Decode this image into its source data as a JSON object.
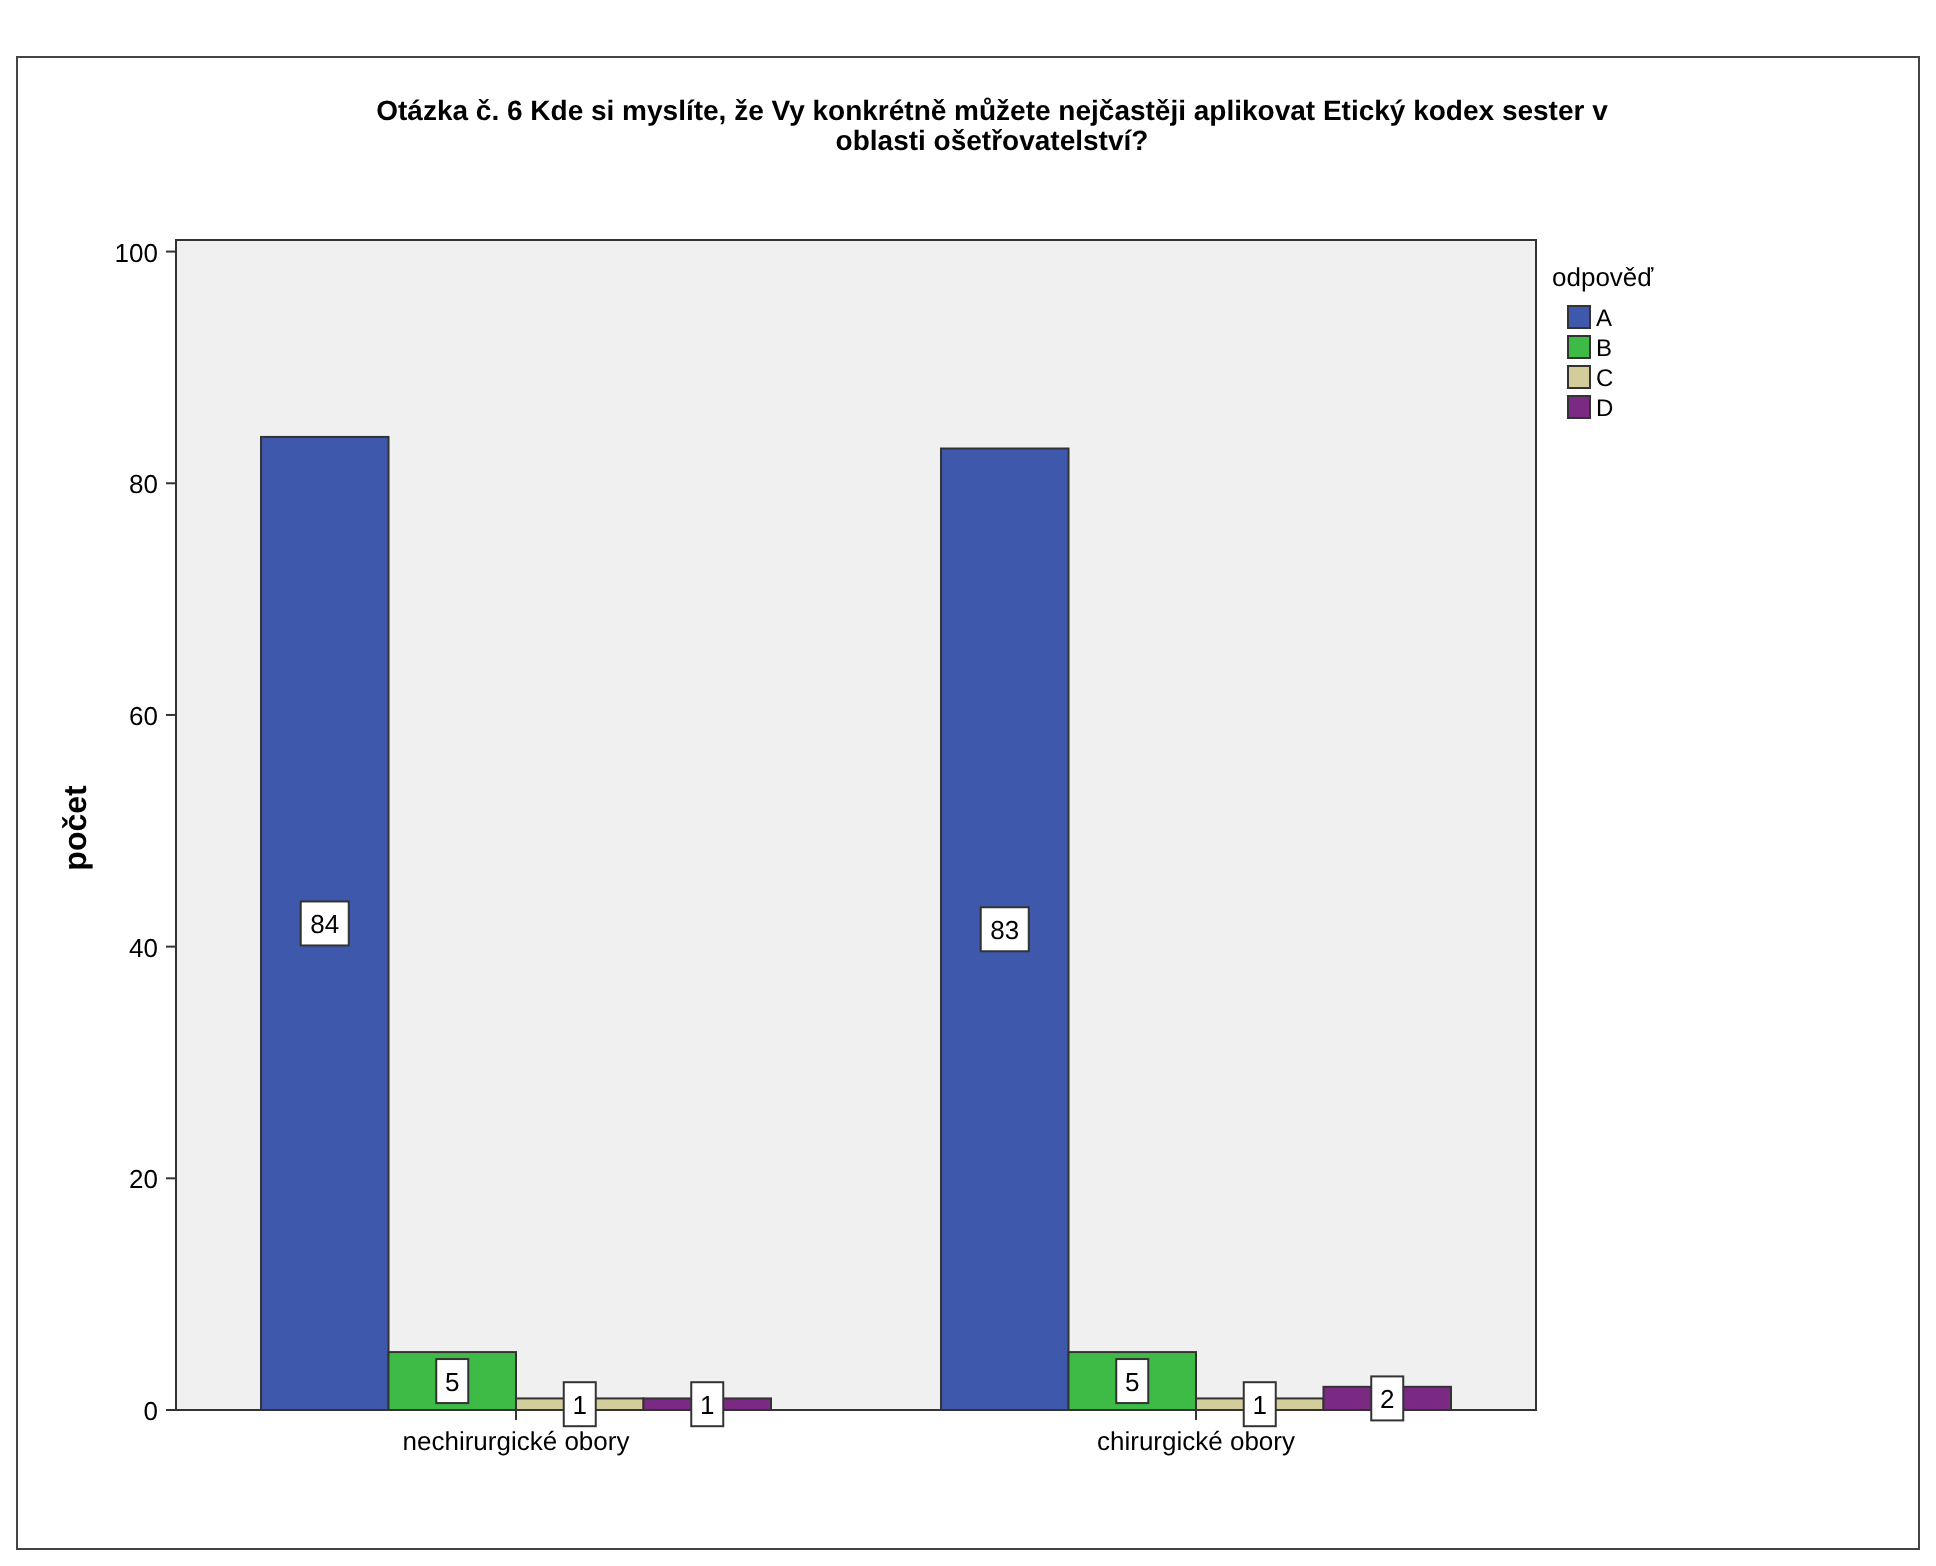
{
  "chart_data": {
    "type": "bar",
    "title": "Otázka č. 6 Kde si myslíte, že Vy konkrétně můžete nejčastěji aplikovat Etický kodex sester v oblasti ošetřovatelství?",
    "ylabel": "počet",
    "legend_title": "odpověď",
    "categories": [
      "nechirurgické obory",
      "chirurgické obory"
    ],
    "series": [
      {
        "name": "A",
        "color": "#3e58ac",
        "values": [
          84,
          83
        ]
      },
      {
        "name": "B",
        "color": "#3dbb46",
        "values": [
          5,
          5
        ]
      },
      {
        "name": "C",
        "color": "#d3cd9b",
        "values": [
          1,
          1
        ]
      },
      {
        "name": "D",
        "color": "#7a2a82",
        "values": [
          1,
          2
        ]
      }
    ],
    "ylim": [
      0,
      101
    ],
    "yticks": [
      0,
      20,
      40,
      60,
      80,
      100
    ],
    "grid": false,
    "legend": "top right",
    "data_labels": true
  }
}
